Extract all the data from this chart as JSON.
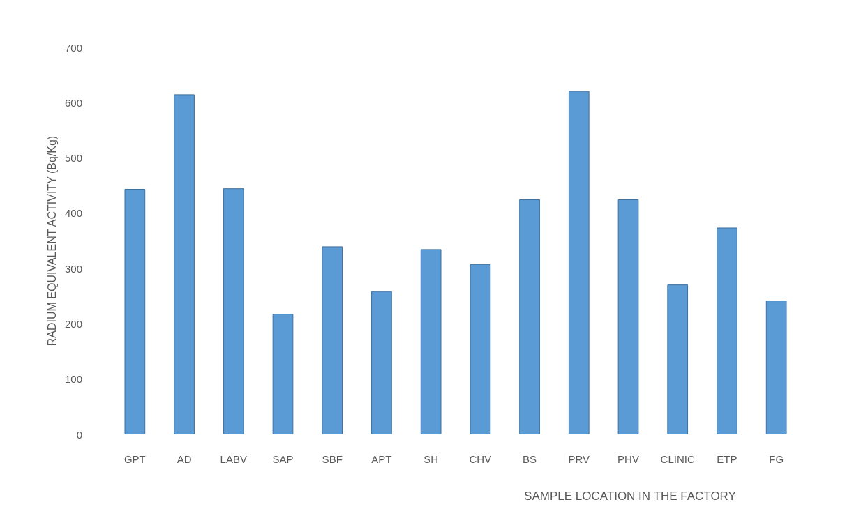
{
  "chart_data": {
    "type": "bar",
    "xlabel": "SAMPLE LOCATION IN THE FACTORY",
    "ylabel": "RADIUM EQUIVALENT ACTIVITY (Bq/Kg)",
    "categories": [
      "GPT",
      "AD",
      "LABV",
      "SAP",
      "SBF",
      "APT",
      "SH",
      "CHV",
      "BS",
      "PRV",
      "PHV",
      "CLINIC",
      "ETP",
      "FG"
    ],
    "values": [
      444,
      615,
      445,
      218,
      340,
      259,
      335,
      308,
      425,
      621,
      425,
      271,
      374,
      242
    ],
    "color": "#5b9bd5",
    "ylim": [
      0,
      700
    ],
    "yticks": [
      0,
      100,
      200,
      300,
      400,
      500,
      600,
      700
    ],
    "grid": false
  }
}
